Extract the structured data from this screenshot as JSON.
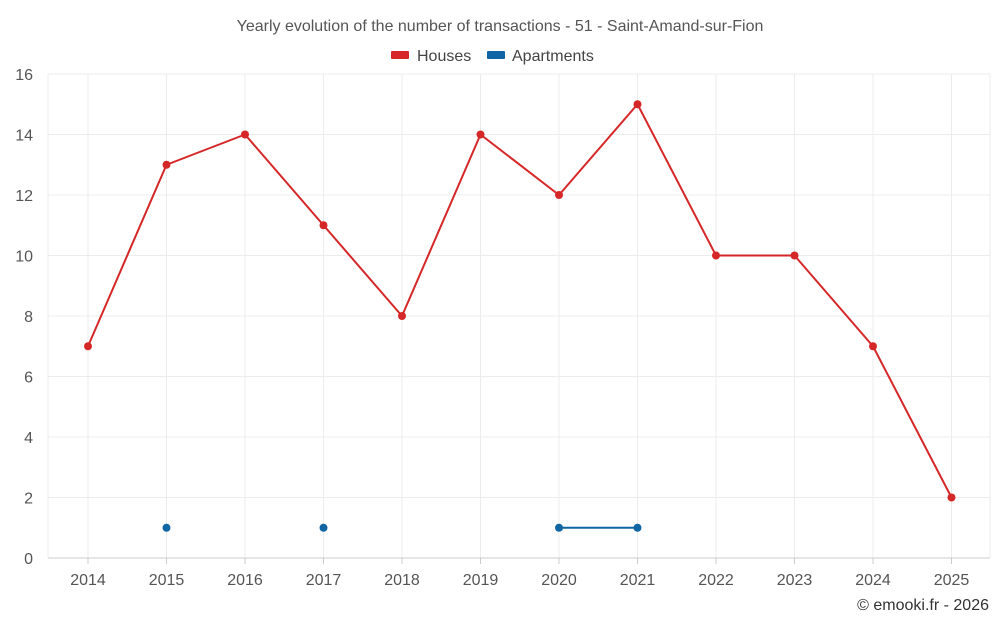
{
  "chart_data": {
    "type": "line",
    "title": "Yearly evolution of the number of transactions - 51 - Saint-Amand-sur-Fion",
    "categories": [
      "2014",
      "2015",
      "2016",
      "2017",
      "2018",
      "2019",
      "2020",
      "2021",
      "2022",
      "2023",
      "2024",
      "2025"
    ],
    "series": [
      {
        "name": "Houses",
        "color": "#d62728",
        "values": [
          7,
          13,
          14,
          11,
          8,
          14,
          12,
          15,
          10,
          10,
          7,
          2
        ]
      },
      {
        "name": "Apartments",
        "color": "#0f66a3",
        "values": [
          null,
          1,
          null,
          1,
          null,
          null,
          1,
          1,
          null,
          null,
          null,
          null
        ]
      }
    ],
    "ylim": [
      0,
      16
    ],
    "yticks": [
      "0",
      "2",
      "4",
      "6",
      "8",
      "10",
      "12",
      "14",
      "16"
    ],
    "xlabel": "",
    "ylabel": "",
    "grid": true,
    "legend_position": "top-center"
  },
  "credit": "© emooki.fr - 2026"
}
